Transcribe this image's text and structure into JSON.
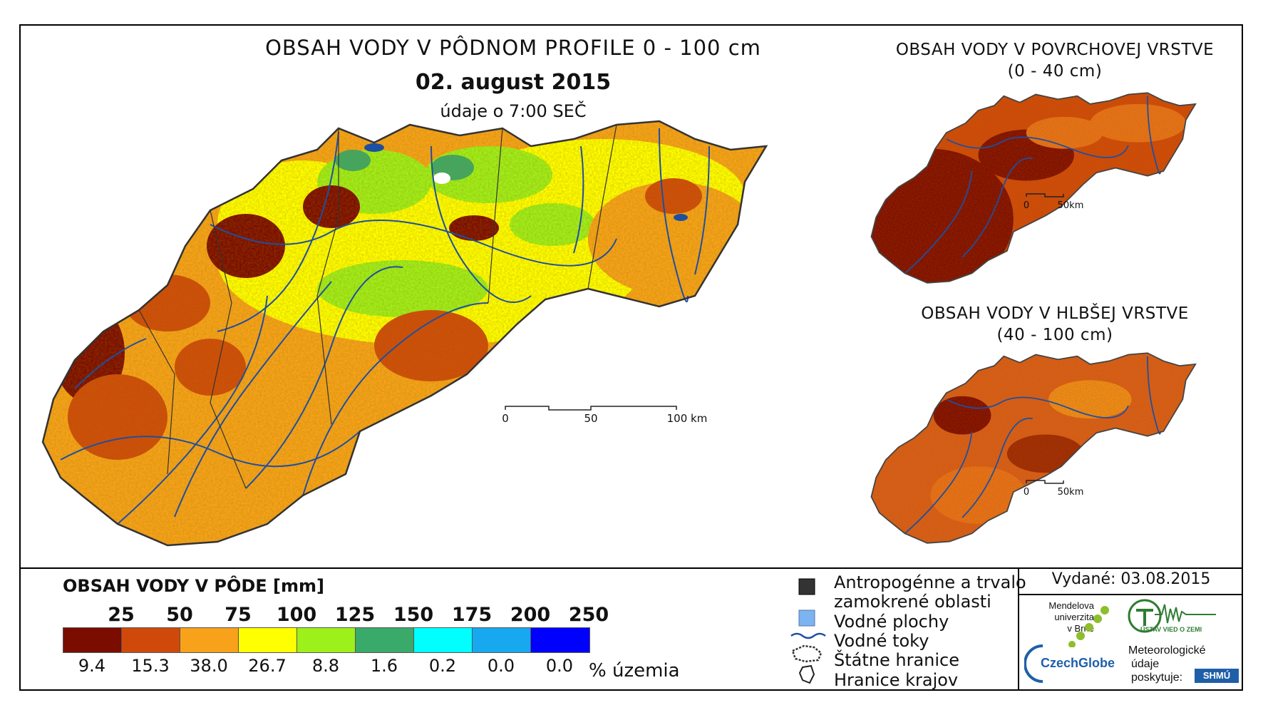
{
  "main_map": {
    "title": "OBSAH VODY V PÔDNOM PROFILE 0 - 100 cm",
    "date": "02. august 2015",
    "time_note": "údaje o 7:00 SEČ",
    "scale_labels": [
      "0",
      "50",
      "100 km"
    ]
  },
  "surface_map": {
    "title_line1": "OBSAH VODY V POVRCHOVEJ VRSTVE",
    "title_line2": "(0 - 40 cm)",
    "scale_labels": [
      "0",
      "50km"
    ]
  },
  "deep_map": {
    "title_line1": "OBSAH VODY V HLBŠEJ VRSTVE",
    "title_line2": "(40 - 100 cm)",
    "scale_labels": [
      "0",
      "50km"
    ]
  },
  "legend": {
    "title": "OBSAH VODY V PÔDE [mm]",
    "thresholds": [
      "25",
      "50",
      "75",
      "100",
      "125",
      "150",
      "175",
      "200",
      "250"
    ],
    "classes": [
      {
        "color": "#7b0c00",
        "percent": "9.4"
      },
      {
        "color": "#cf4a0a",
        "percent": "15.3"
      },
      {
        "color": "#f7a21a",
        "percent": "38.0"
      },
      {
        "color": "#ffff00",
        "percent": "26.7"
      },
      {
        "color": "#9ef01a",
        "percent": "8.8"
      },
      {
        "color": "#3aaa6a",
        "percent": "1.6"
      },
      {
        "color": "#00ffff",
        "percent": "0.2"
      },
      {
        "color": "#18a8f0",
        "percent": "0.0"
      },
      {
        "color": "#0000ff",
        "percent": "0.0"
      }
    ],
    "percent_label": "% územia"
  },
  "symbols": {
    "anthropogenic_line1": "Antropogénne a trvalo",
    "anthropogenic_line2": "zamokrené oblasti",
    "water_areas": "Vodné plochy",
    "rivers": "Vodné toky",
    "state_border": "Štátne hranice",
    "region_border": "Hranice krajov"
  },
  "issued": "Vydané: 03.08.2015",
  "logos": {
    "mendel_line1": "Mendelova",
    "mendel_line2": "univerzita",
    "mendel_line3": "v Brně",
    "czechglobe": "CzechGlobe",
    "ustav": "ÚSTAV VIED O ZEMI",
    "meteo_line1": "Meteorologické",
    "meteo_line2": "údaje",
    "meteo_line3": "poskytuje:",
    "shmu": "SHMÚ"
  },
  "colors": {
    "river": "#1f4fa0",
    "border": "#333333",
    "water_area": "#7db3f0",
    "anthropogenic": "#333333"
  }
}
